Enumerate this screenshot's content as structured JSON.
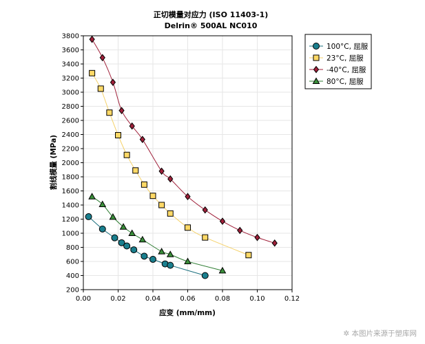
{
  "chart_data": {
    "type": "line",
    "title": "正切模量对应力 (ISO 11403-1)",
    "subtitle": "Delrin® 500AL NC010",
    "xlabel": "应变 (mm/mm)",
    "ylabel": "割线模量 (MPa)",
    "xlim": [
      0,
      0.12
    ],
    "ylim": [
      200,
      3800
    ],
    "xticks": [
      "0.00",
      "0.02",
      "0.04",
      "0.06",
      "0.08",
      "0.10",
      "0.12"
    ],
    "yticks": [
      "200",
      "400",
      "600",
      "800",
      "1000",
      "1200",
      "1400",
      "1600",
      "1800",
      "2000",
      "2200",
      "2400",
      "2600",
      "2800",
      "3000",
      "3200",
      "3400",
      "3600",
      "3800"
    ],
    "grid": true,
    "legend_position": "right",
    "series": [
      {
        "name": "100°C, 屈服",
        "marker": "circle",
        "color": "#1a7f8e",
        "line_color": "#1a6f7e",
        "x": [
          0.003,
          0.011,
          0.018,
          0.022,
          0.025,
          0.029,
          0.035,
          0.04,
          0.047,
          0.05,
          0.07
        ],
        "y": [
          1235,
          1060,
          935,
          865,
          820,
          765,
          675,
          630,
          565,
          545,
          400
        ]
      },
      {
        "name": "23°C, 屈服",
        "marker": "square",
        "color": "#ffd966",
        "line_color": "#f5d26b",
        "x": [
          0.005,
          0.01,
          0.015,
          0.02,
          0.025,
          0.03,
          0.035,
          0.04,
          0.045,
          0.05,
          0.06,
          0.07,
          0.095
        ],
        "y": [
          3270,
          3050,
          2710,
          2390,
          2110,
          1890,
          1690,
          1530,
          1400,
          1280,
          1080,
          940,
          690
        ]
      },
      {
        "name": "-40°C, 屈服",
        "marker": "diamond",
        "color": "#a0203a",
        "line_color": "#a0203a",
        "x": [
          0.005,
          0.011,
          0.017,
          0.022,
          0.028,
          0.034,
          0.045,
          0.05,
          0.06,
          0.07,
          0.08,
          0.09,
          0.1,
          0.11
        ],
        "y": [
          3750,
          3490,
          3140,
          2740,
          2520,
          2330,
          1880,
          1770,
          1520,
          1330,
          1170,
          1040,
          940,
          860
        ]
      },
      {
        "name": "80°C, 屈服",
        "marker": "triangle",
        "color": "#3a8f3a",
        "line_color": "#2e7d32",
        "x": [
          0.005,
          0.011,
          0.017,
          0.023,
          0.028,
          0.034,
          0.045,
          0.05,
          0.06,
          0.08
        ],
        "y": [
          1520,
          1410,
          1230,
          1090,
          1000,
          910,
          740,
          700,
          600,
          470
        ]
      }
    ]
  },
  "watermark": "本图片来源于塑库网",
  "watermark_icon": "gear-icon"
}
